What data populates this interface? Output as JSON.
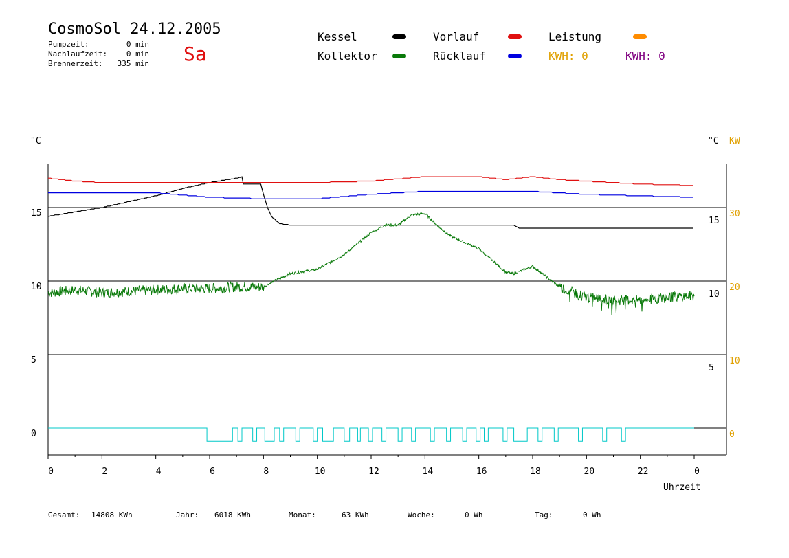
{
  "header": {
    "title": "CosmoSol 24.12.2005",
    "day": "Sa",
    "stats": [
      {
        "label": "Pumpzeit:",
        "value": "0 min"
      },
      {
        "label": "Nachlaufzeit:",
        "value": "0 min"
      },
      {
        "label": "Brennerzeit:",
        "value": "335 min"
      }
    ]
  },
  "legend": {
    "kessel": {
      "label": "Kessel",
      "color": "#000000"
    },
    "vorlauf": {
      "label": "Vorlauf",
      "color": "#e01010"
    },
    "leistung": {
      "label": "Leistung",
      "color": "#ff8c00"
    },
    "kollektor": {
      "label": "Kollektor",
      "color": "#0a7a0a"
    },
    "ruecklauf": {
      "label": "Rücklauf",
      "color": "#0000e0"
    },
    "kwh1": {
      "label": "KWH: 0",
      "color": "#e0a000"
    },
    "kwh2": {
      "label": "KWH: 0",
      "color": "#800080"
    }
  },
  "footer": [
    {
      "label": "Gesamt:",
      "value": "14808 KWh"
    },
    {
      "label": "Jahr:",
      "value": "6018 KWh"
    },
    {
      "label": "Monat:",
      "value": "63 KWh"
    },
    {
      "label": "Woche:",
      "value": "0 Wh"
    },
    {
      "label": "Tag:",
      "value": "0 Wh"
    }
  ],
  "chart_data": {
    "type": "line",
    "xlabel": "Uhrzeit",
    "xlim": [
      0,
      24
    ],
    "ylim": [
      -2,
      18
    ],
    "left_unit": "°C",
    "right_unit_temp": "°C",
    "right_unit_power": "KW",
    "x_ticks": [
      "0",
      "2",
      "4",
      "6",
      "8",
      "10",
      "12",
      "14",
      "16",
      "18",
      "20",
      "22",
      "0"
    ],
    "y_ticks_left": [
      "0",
      "5",
      "10",
      "15"
    ],
    "y_ticks_right_temp": [
      "5",
      "10",
      "15"
    ],
    "y_ticks_right_power": [
      "0",
      "10",
      "20",
      "30"
    ],
    "gridlines_y": [
      5,
      10,
      15
    ],
    "series": [
      {
        "name": "Kessel",
        "color": "#000000",
        "x": [
          0,
          1,
          2,
          3,
          4,
          5,
          6,
          7,
          7.2,
          7.25,
          7.9,
          8.0,
          8.15,
          8.3,
          8.6,
          9,
          12,
          16,
          17.3,
          17.5,
          20,
          24
        ],
        "y": [
          14.4,
          14.7,
          15.0,
          15.4,
          15.8,
          16.3,
          16.7,
          17.0,
          17.1,
          16.6,
          16.6,
          15.9,
          15.0,
          14.4,
          13.9,
          13.8,
          13.8,
          13.8,
          13.8,
          13.6,
          13.6,
          13.6
        ]
      },
      {
        "name": "Vorlauf",
        "color": "#e01010",
        "x": [
          0,
          1,
          2,
          4,
          6,
          8,
          10,
          12,
          14,
          16,
          17,
          18,
          19,
          20,
          22,
          24
        ],
        "y": [
          17.0,
          16.8,
          16.7,
          16.7,
          16.7,
          16.7,
          16.7,
          16.8,
          17.1,
          17.1,
          16.9,
          17.1,
          16.9,
          16.8,
          16.6,
          16.5
        ]
      },
      {
        "name": "Rücklauf",
        "color": "#0000e0",
        "x": [
          0,
          2,
          4,
          6,
          8,
          10,
          12,
          14,
          16,
          18,
          20,
          22,
          24
        ],
        "y": [
          16.0,
          16.0,
          16.0,
          15.7,
          15.6,
          15.6,
          15.9,
          16.1,
          16.1,
          16.1,
          15.9,
          15.8,
          15.7
        ]
      },
      {
        "name": "Kollektor",
        "color": "#0a7a0a",
        "noise": true,
        "x": [
          0,
          1,
          2,
          3,
          4,
          5,
          6,
          7,
          8,
          8.5,
          9,
          10,
          11,
          12,
          12.5,
          13,
          13.5,
          14,
          14.5,
          15,
          16,
          17,
          17.3,
          18,
          19,
          20,
          21,
          22,
          23,
          24
        ],
        "y": [
          9.2,
          9.4,
          9.2,
          9.3,
          9.4,
          9.5,
          9.5,
          9.6,
          9.6,
          10.1,
          10.5,
          10.8,
          11.8,
          13.3,
          13.8,
          13.8,
          14.5,
          14.6,
          13.7,
          13.0,
          12.2,
          10.6,
          10.5,
          11.0,
          9.6,
          8.9,
          8.7,
          8.7,
          8.9,
          9.0
        ]
      }
    ],
    "pump_pulses": {
      "color": "#00c8c8",
      "baseline": 0,
      "depth": -0.9,
      "intervals": [
        [
          5.9,
          6.85
        ],
        [
          7.05,
          7.2
        ],
        [
          7.6,
          7.75
        ],
        [
          8.05,
          8.4
        ],
        [
          8.6,
          8.75
        ],
        [
          9.2,
          9.35
        ],
        [
          9.85,
          10.0
        ],
        [
          10.2,
          10.6
        ],
        [
          11.0,
          11.2
        ],
        [
          11.5,
          11.6
        ],
        [
          11.9,
          12.05
        ],
        [
          12.4,
          12.55
        ],
        [
          13.0,
          13.15
        ],
        [
          13.5,
          13.65
        ],
        [
          14.2,
          14.35
        ],
        [
          14.8,
          14.95
        ],
        [
          15.4,
          15.55
        ],
        [
          15.9,
          16.05
        ],
        [
          16.2,
          16.35
        ],
        [
          16.9,
          17.05
        ],
        [
          17.3,
          17.8
        ],
        [
          18.2,
          18.35
        ],
        [
          18.8,
          18.95
        ],
        [
          19.7,
          19.85
        ],
        [
          20.6,
          20.75
        ],
        [
          21.3,
          21.45
        ]
      ]
    }
  }
}
